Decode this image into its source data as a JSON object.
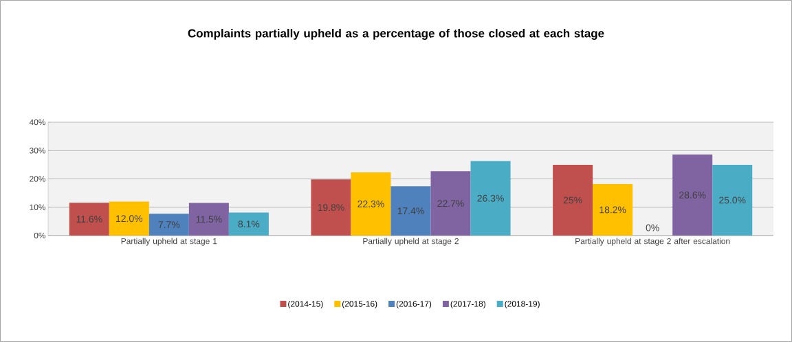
{
  "chart_data": {
    "type": "bar",
    "title": "Complaints partially upheld as a percentage of those closed at each stage",
    "categories": [
      "Partially upheld at stage 1",
      "Partially upheld at stage 2",
      "Partially upheld at stage 2 after escalation"
    ],
    "series": [
      {
        "name": "(2014-15)",
        "color": "#c0504d",
        "values": [
          11.6,
          19.8,
          25
        ],
        "value_labels": [
          "11.6%",
          "19.8%",
          "25%"
        ]
      },
      {
        "name": "(2015-16)",
        "color": "#ffc000",
        "values": [
          12.0,
          22.3,
          18.2
        ],
        "value_labels": [
          "12.0%",
          "22.3%",
          "18.2%"
        ]
      },
      {
        "name": "(2016-17)",
        "color": "#4f81bd",
        "values": [
          7.7,
          17.4,
          0
        ],
        "value_labels": [
          "7.7%",
          "17.4%",
          "0%"
        ]
      },
      {
        "name": "(2017-18)",
        "color": "#8064a2",
        "values": [
          11.5,
          22.7,
          28.6
        ],
        "value_labels": [
          "11.5%",
          "22.7%",
          "28.6%"
        ]
      },
      {
        "name": "(2018-19)",
        "color": "#4bacc6",
        "values": [
          8.1,
          26.3,
          25.0
        ],
        "value_labels": [
          "8.1%",
          "26.3%",
          "25.0%"
        ]
      }
    ],
    "ylim": [
      0,
      40
    ],
    "yticks": [
      {
        "value": 0,
        "label": "0%"
      },
      {
        "value": 10,
        "label": "10%"
      },
      {
        "value": 20,
        "label": "20%"
      },
      {
        "value": 30,
        "label": "30%"
      },
      {
        "value": 40,
        "label": "40%"
      }
    ],
    "grid": "y",
    "legend": "bottom"
  }
}
